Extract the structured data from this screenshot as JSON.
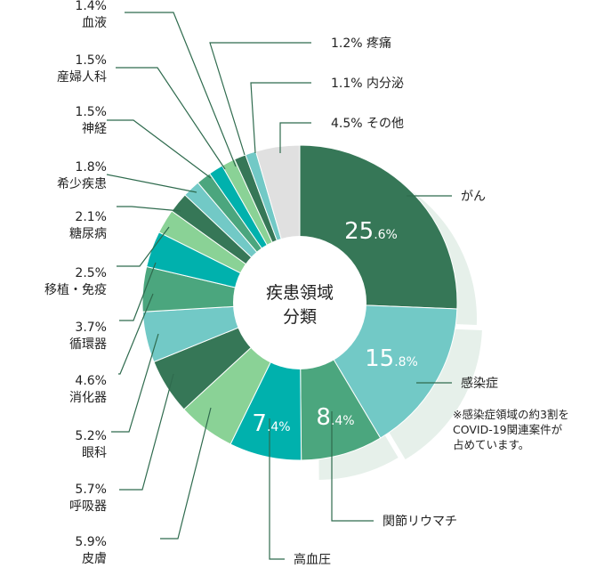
{
  "chart_data": {
    "type": "pie",
    "title": "疾患領域\n分類",
    "series": [
      {
        "label": "がん",
        "value": 25.6,
        "pct": "25.6%",
        "color": "#367757"
      },
      {
        "label": "感染症",
        "value": 15.8,
        "pct": "15.8%",
        "color": "#72c9c6"
      },
      {
        "label": "関節リウマチ",
        "value": 8.4,
        "pct": "8.4%",
        "color": "#4ba67e"
      },
      {
        "label": "高血圧",
        "value": 7.4,
        "pct": "7.4%",
        "color": "#00b1ad"
      },
      {
        "label": "皮膚",
        "value": 5.9,
        "pct": "5.9%",
        "color": "#8ad296"
      },
      {
        "label": "呼吸器",
        "value": 5.7,
        "pct": "5.7%",
        "color": "#367757"
      },
      {
        "label": "眼科",
        "value": 5.2,
        "pct": "5.2%",
        "color": "#72c9c6"
      },
      {
        "label": "消化器",
        "value": 4.6,
        "pct": "4.6%",
        "color": "#4ba67e"
      },
      {
        "label": "循環器",
        "value": 3.7,
        "pct": "3.7%",
        "color": "#00b1ad"
      },
      {
        "label": "移植・免疫",
        "value": 2.5,
        "pct": "2.5%",
        "color": "#8ad296"
      },
      {
        "label": "糖尿病",
        "value": 2.1,
        "pct": "2.1%",
        "color": "#367757"
      },
      {
        "label": "希少疾患",
        "value": 1.8,
        "pct": "1.8%",
        "color": "#72c9c6"
      },
      {
        "label": "神経",
        "value": 1.5,
        "pct": "1.5%",
        "color": "#4ba67e"
      },
      {
        "label": "産婦人科",
        "value": 1.5,
        "pct": "1.5%",
        "color": "#00b1ad"
      },
      {
        "label": "血液",
        "value": 1.4,
        "pct": "1.4%",
        "color": "#8ad296"
      },
      {
        "label": "疼痛",
        "value": 1.2,
        "pct": "1.2%",
        "color": "#367757"
      },
      {
        "label": "内分泌",
        "value": 1.1,
        "pct": "1.1%",
        "color": "#72c9c6"
      },
      {
        "label": "その他",
        "value": 4.5,
        "pct": "4.5%",
        "color": "#e0e0e0"
      }
    ],
    "note": "※感染症領域の約3割を\nCOVID-19関連案件が\n占めています。",
    "line_color": "#2f6b4e",
    "shadow_color": "#e6f0ea"
  }
}
